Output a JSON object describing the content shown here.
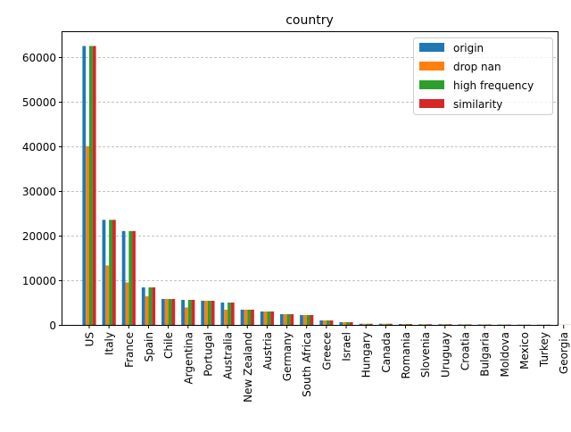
{
  "chart_data": {
    "type": "bar",
    "title": "country",
    "xlabel": "",
    "ylabel": "",
    "ylim": [
      0,
      65500
    ],
    "yticks": [
      0,
      10000,
      20000,
      30000,
      40000,
      50000,
      60000
    ],
    "ytick_labels": [
      "0",
      "10000",
      "20000",
      "30000",
      "40000",
      "50000",
      "60000"
    ],
    "grid": "y-axis, dashed",
    "legend_position": "top-right",
    "categories": [
      "US",
      "Italy",
      "France",
      "Spain",
      "Chile",
      "Argentina",
      "Portugal",
      "Australia",
      "New Zealand",
      "Austria",
      "Germany",
      "South Africa",
      "Greece",
      "Israel",
      "Hungary",
      "Canada",
      "Romania",
      "Slovenia",
      "Uruguay",
      "Croatia",
      "Bulgaria",
      "Moldova",
      "Mexico",
      "Turkey",
      "Georgia"
    ],
    "series": [
      {
        "name": "origin",
        "color": "#1f77b4",
        "values": [
          62400,
          23500,
          21000,
          8400,
          5800,
          5600,
          5400,
          5000,
          3400,
          3000,
          2400,
          2200,
          1000,
          600,
          250,
          250,
          200,
          150,
          150,
          120,
          100,
          80,
          60,
          50,
          40
        ]
      },
      {
        "name": "drop nan",
        "color": "#ff7f0e",
        "values": [
          40000,
          13300,
          9500,
          6400,
          5800,
          3900,
          5400,
          3400,
          3400,
          3000,
          2400,
          2200,
          1000,
          600,
          250,
          250,
          200,
          150,
          150,
          120,
          100,
          80,
          60,
          50,
          40
        ]
      },
      {
        "name": "high frequency",
        "color": "#2ca02c",
        "values": [
          62400,
          23500,
          21000,
          8400,
          5800,
          5600,
          5400,
          5000,
          3400,
          3000,
          2400,
          2200,
          1000,
          600,
          250,
          250,
          200,
          150,
          150,
          120,
          100,
          80,
          60,
          50,
          40
        ]
      },
      {
        "name": "similarity",
        "color": "#d62728",
        "values": [
          62400,
          23500,
          21000,
          8400,
          5800,
          5600,
          5400,
          5000,
          3400,
          3000,
          2400,
          2200,
          1000,
          600,
          250,
          250,
          200,
          150,
          150,
          120,
          100,
          80,
          60,
          50,
          40
        ]
      }
    ]
  }
}
